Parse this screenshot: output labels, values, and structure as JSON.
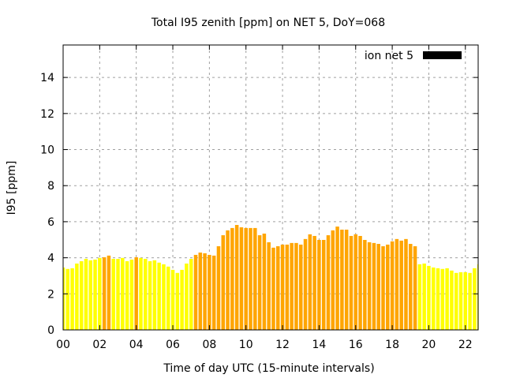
{
  "chart_data": {
    "type": "bar",
    "title": "Total I95 zenith [ppm] on NET 5, DoY=068",
    "xlabel": "Time of day UTC (15-minute intervals)",
    "ylabel": "I95 [ppm]",
    "xlim": [
      0,
      22.7
    ],
    "ylim": [
      0,
      15.8
    ],
    "x_ticks": [
      0,
      2,
      4,
      6,
      8,
      10,
      12,
      14,
      16,
      18,
      20,
      22
    ],
    "x_tick_labels": [
      "00",
      "02",
      "04",
      "06",
      "08",
      "10",
      "12",
      "14",
      "16",
      "18",
      "20",
      "22"
    ],
    "y_ticks": [
      0,
      2,
      4,
      6,
      8,
      10,
      12,
      14
    ],
    "y_tick_labels": [
      "0",
      "2",
      "4",
      "6",
      "8",
      "10",
      "12",
      "14"
    ],
    "grid": true,
    "legend": {
      "position": "top-right",
      "entries": [
        {
          "label": "ion net 5",
          "color": "#000000"
        }
      ]
    },
    "bar_interval_hours": 0.25,
    "colors": {
      "low": "#ffff00",
      "high": "#ffa500"
    },
    "color_threshold": 4.0,
    "values": [
      3.46,
      3.38,
      3.42,
      3.68,
      3.81,
      3.94,
      3.86,
      3.9,
      3.99,
      4.03,
      4.12,
      3.94,
      3.94,
      3.99,
      3.81,
      3.9,
      4.03,
      3.99,
      3.94,
      3.81,
      3.86,
      3.73,
      3.64,
      3.51,
      3.33,
      3.16,
      3.33,
      3.68,
      3.94,
      4.16,
      4.29,
      4.25,
      4.16,
      4.12,
      4.64,
      5.25,
      5.52,
      5.65,
      5.82,
      5.69,
      5.65,
      5.65,
      5.65,
      5.25,
      5.34,
      4.86,
      4.56,
      4.64,
      4.73,
      4.73,
      4.82,
      4.82,
      4.73,
      5.04,
      5.3,
      5.21,
      4.99,
      4.99,
      5.25,
      5.52,
      5.73,
      5.56,
      5.56,
      5.21,
      5.3,
      5.21,
      4.99,
      4.86,
      4.82,
      4.77,
      4.64,
      4.73,
      4.91,
      5.04,
      4.95,
      5.04,
      4.77,
      4.64,
      3.64,
      3.68,
      3.55,
      3.46,
      3.42,
      3.38,
      3.42,
      3.29,
      3.16,
      3.2,
      3.2,
      3.16,
      3.42,
      3.64
    ]
  }
}
